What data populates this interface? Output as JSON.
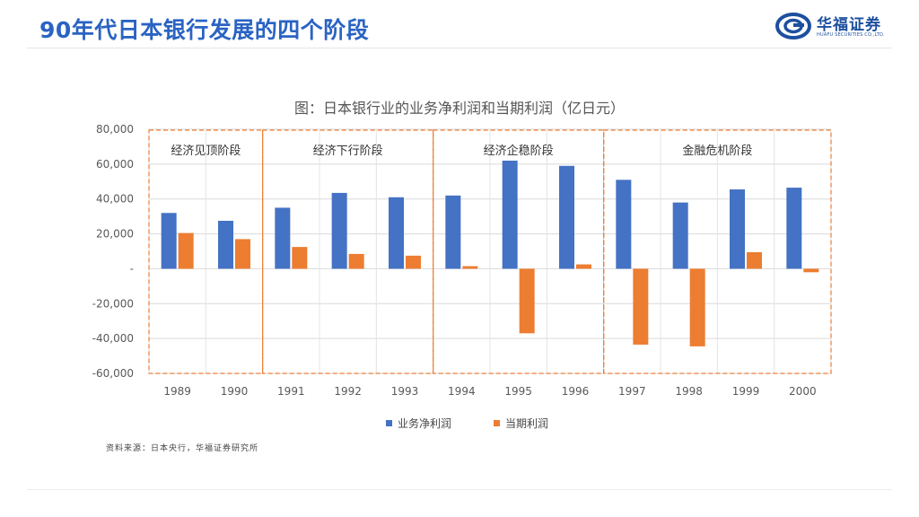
{
  "header": {
    "title": "90年代日本银行发展的四个阶段"
  },
  "logo": {
    "name": "华福证券",
    "sub": "HUAFU SECURITIES CO.,LTD."
  },
  "chart_data": {
    "type": "bar",
    "title": "图：日本银行业的业务净利润和当期利润（亿日元）",
    "categories": [
      "1989",
      "1990",
      "1991",
      "1992",
      "1993",
      "1994",
      "1995",
      "1996",
      "1997",
      "1998",
      "1999",
      "2000"
    ],
    "series": [
      {
        "name": "业务净利润",
        "color": "#4472c4",
        "values": [
          32000,
          27500,
          35000,
          43500,
          41000,
          42000,
          62000,
          59000,
          51000,
          38000,
          45500,
          46500
        ]
      },
      {
        "name": "当期利润",
        "color": "#ed7d31",
        "values": [
          20500,
          17000,
          12500,
          8500,
          7500,
          1500,
          -37000,
          2500,
          -43500,
          -44500,
          9500,
          -2000
        ]
      }
    ],
    "ylim": [
      -60000,
      80000
    ],
    "yticks": [
      80000,
      60000,
      40000,
      20000,
      0,
      -20000,
      -40000,
      -60000
    ],
    "ytick_labels": [
      "80,000",
      "60,000",
      "40,000",
      "20,000",
      "-",
      "-20,000",
      "-40,000",
      "-60,000"
    ],
    "phases": [
      {
        "label": "经济见顶阶段",
        "start": 0,
        "end": 1
      },
      {
        "label": "经济下行阶段",
        "start": 2,
        "end": 4
      },
      {
        "label": "经济企稳阶段",
        "start": 5,
        "end": 7
      },
      {
        "label": "金融危机阶段",
        "start": 8,
        "end": 11
      }
    ],
    "xlabel": "",
    "ylabel": ""
  },
  "source": "资料来源：日本央行，华福证券研究所"
}
